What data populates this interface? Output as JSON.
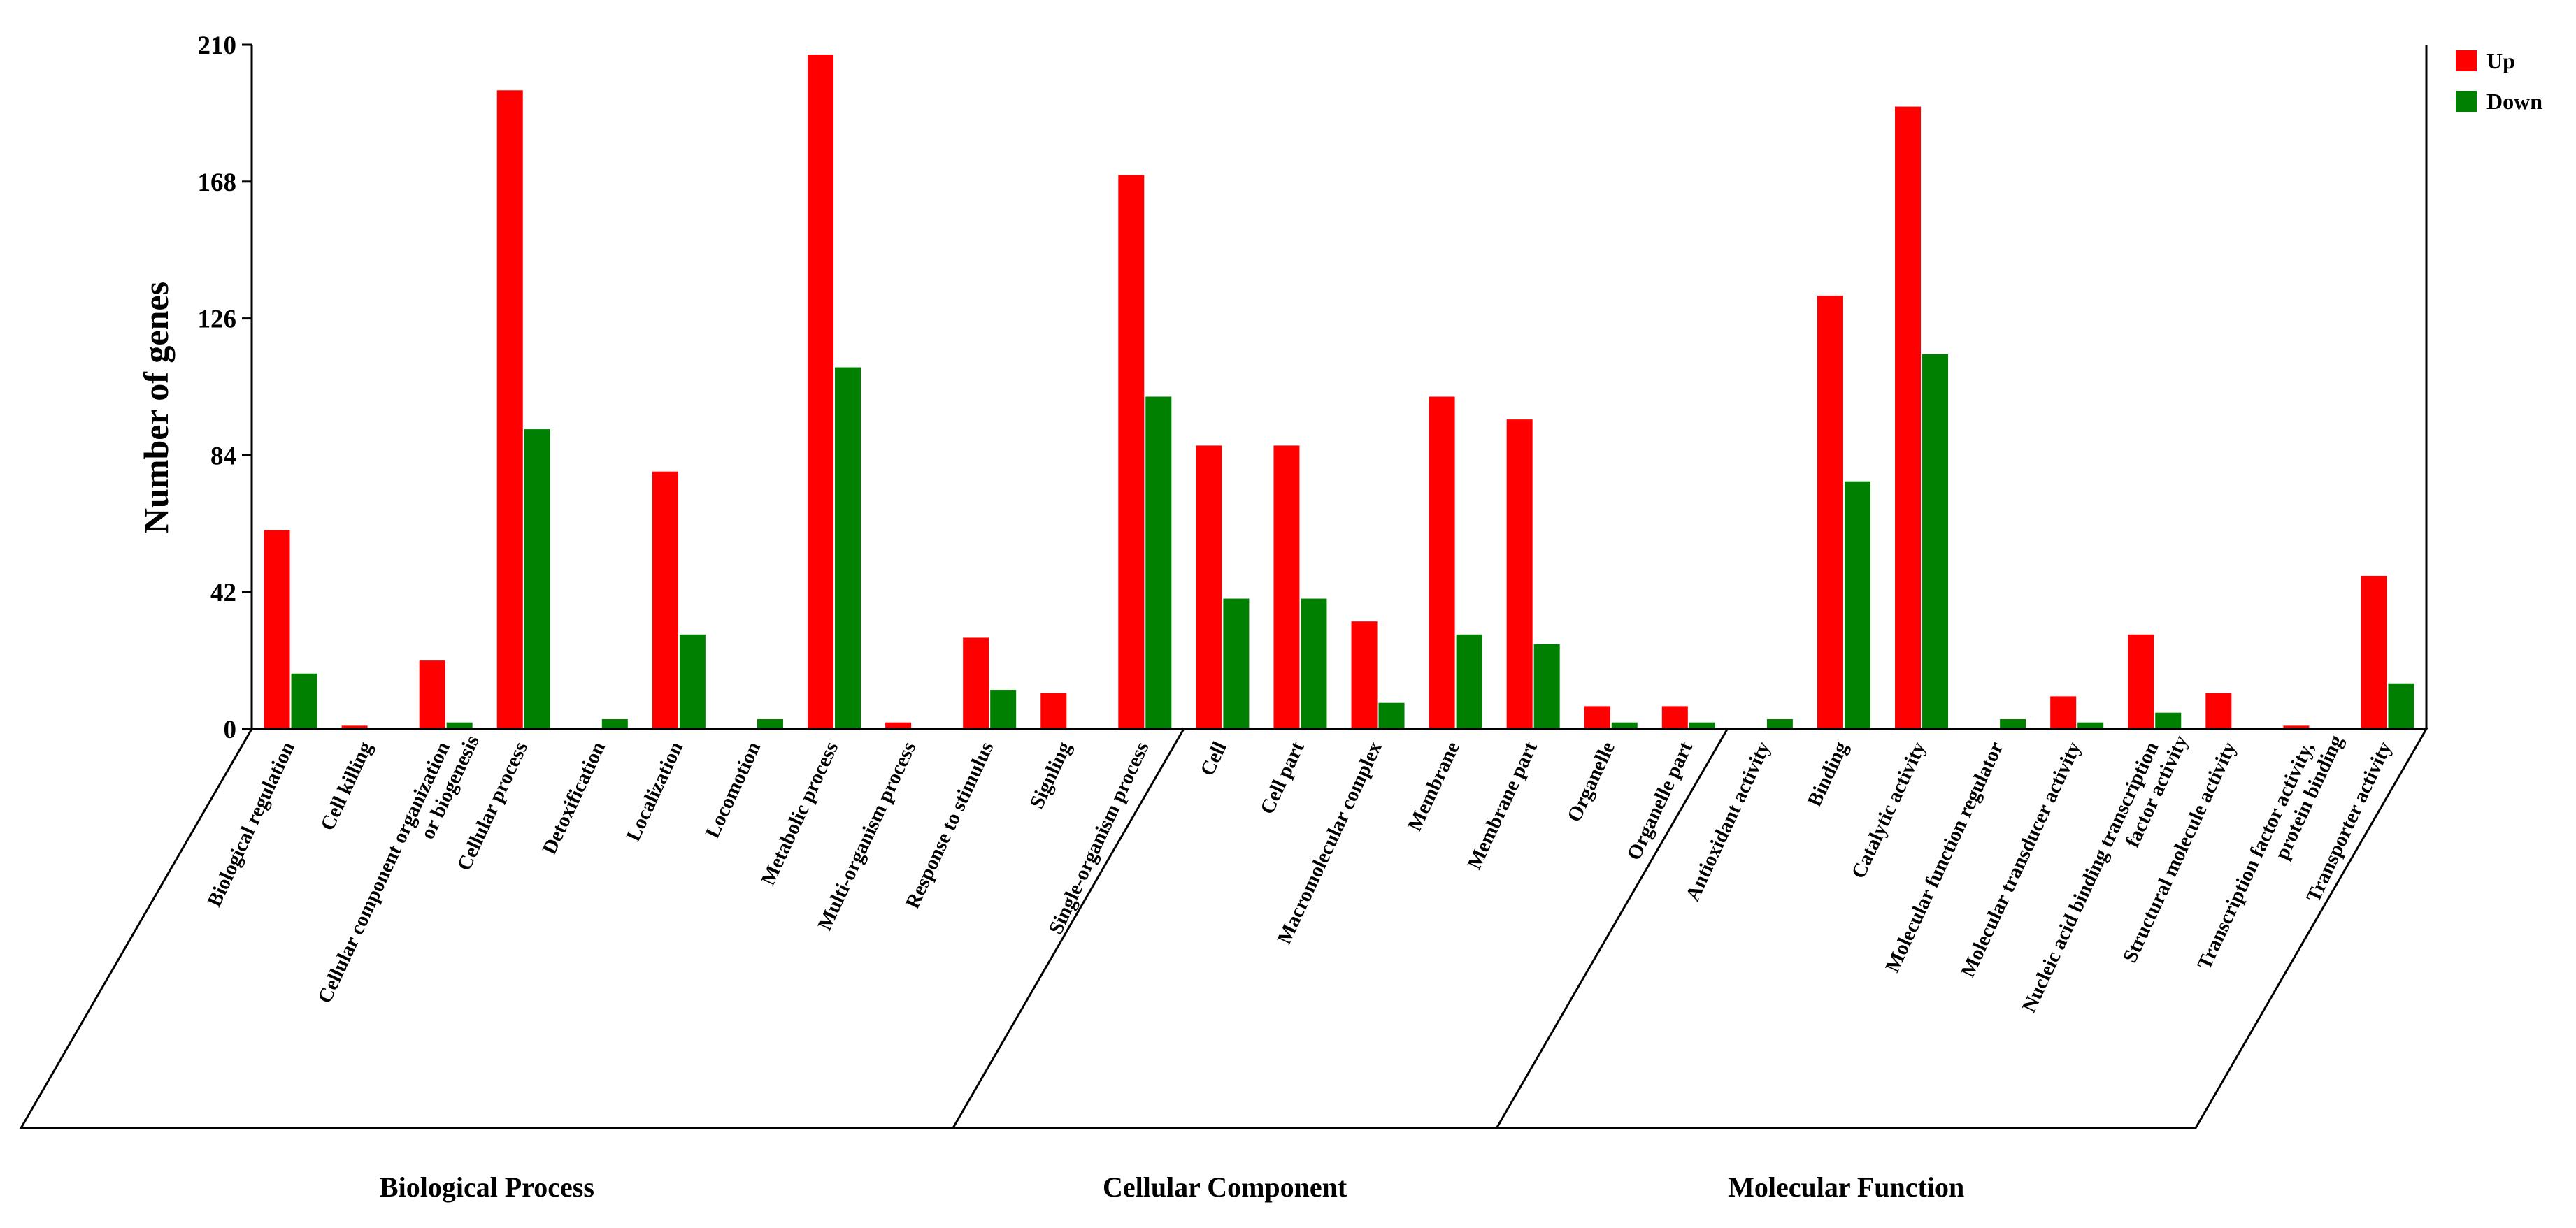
{
  "chart_data": {
    "type": "bar",
    "title": "",
    "xlabel": "",
    "ylabel": "Number of genes",
    "ylim": [
      0,
      210
    ],
    "yticks": [
      0,
      42,
      84,
      126,
      168,
      210
    ],
    "legend_position": "top-right",
    "categories": [
      [
        "Biological regulation"
      ],
      [
        "Cell killing"
      ],
      [
        "Cellular component organization",
        "or biogenesis"
      ],
      [
        "Cellular process"
      ],
      [
        "Detoxification"
      ],
      [
        "Localization"
      ],
      [
        "Locomotion"
      ],
      [
        "Metabolic process"
      ],
      [
        "Multi-organism process"
      ],
      [
        "Response to stimulus"
      ],
      [
        "Signling"
      ],
      [
        "Single-organism process"
      ],
      [
        "Cell"
      ],
      [
        "Cell part"
      ],
      [
        "Macromolecular complex"
      ],
      [
        "Membrane"
      ],
      [
        "Membrane part"
      ],
      [
        "Organelle"
      ],
      [
        "Organelle part"
      ],
      [
        "Antioxidant activity"
      ],
      [
        "Binding"
      ],
      [
        "Catalytic activity"
      ],
      [
        "Molecular function regulator"
      ],
      [
        "Molecular transducer activity"
      ],
      [
        "Nucleic acid binding transcription",
        "factor activity"
      ],
      [
        "Structural molecule activity"
      ],
      [
        "Transcription factor activity,",
        "protein binding"
      ],
      [
        "Transporter activity"
      ]
    ],
    "series": [
      {
        "name": "Up",
        "color": "#ff0000",
        "values": [
          61,
          1,
          21,
          196,
          0,
          79,
          0,
          207,
          2,
          28,
          11,
          170,
          87,
          87,
          33,
          102,
          95,
          7,
          7,
          0,
          133,
          191,
          0,
          10,
          29,
          11,
          1,
          47
        ]
      },
      {
        "name": "Down",
        "color": "#008000",
        "values": [
          17,
          0,
          2,
          92,
          3,
          29,
          3,
          111,
          0,
          12,
          0,
          102,
          40,
          40,
          8,
          29,
          26,
          2,
          2,
          3,
          76,
          115,
          3,
          2,
          5,
          0,
          0,
          14
        ]
      }
    ],
    "groups": [
      {
        "label": "Biological Process",
        "count": 12
      },
      {
        "label": "Cellular Component",
        "count": 7
      },
      {
        "label": "Molecular Function",
        "count": 9
      }
    ]
  }
}
